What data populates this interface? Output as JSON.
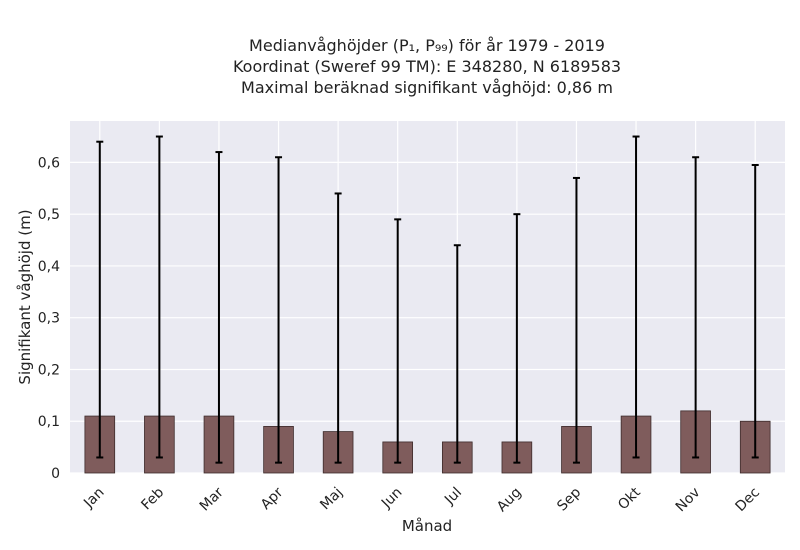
{
  "chart_data": {
    "type": "bar",
    "title_lines": [
      "Medianvåghöjder (P₁, P₉₉) för år 1979 - 2019",
      "Koordinat (Sweref 99 TM): E 348280, N 6189583",
      "Maximal beräknad signifikant våghöjd: 0,86 m"
    ],
    "xlabel": "Månad",
    "ylabel": "Signifikant våghöjd (m)",
    "categories": [
      "Jan",
      "Feb",
      "Mar",
      "Apr",
      "Maj",
      "Jun",
      "Jul",
      "Aug",
      "Sep",
      "Okt",
      "Nov",
      "Dec"
    ],
    "values": [
      0.11,
      0.11,
      0.11,
      0.09,
      0.08,
      0.06,
      0.06,
      0.06,
      0.09,
      0.11,
      0.12,
      0.1
    ],
    "p1": [
      0.03,
      0.03,
      0.02,
      0.02,
      0.02,
      0.02,
      0.02,
      0.02,
      0.02,
      0.03,
      0.03,
      0.03
    ],
    "p99": [
      0.64,
      0.65,
      0.62,
      0.61,
      0.54,
      0.49,
      0.44,
      0.5,
      0.57,
      0.65,
      0.61,
      0.595
    ],
    "yticks": [
      0,
      0.1,
      0.2,
      0.3,
      0.4,
      0.5,
      0.6
    ],
    "ytick_labels": [
      "0",
      "0,1",
      "0,2",
      "0,3",
      "0,4",
      "0,5",
      "0,6"
    ],
    "ylim": [
      0,
      0.68
    ],
    "grid": true,
    "colors": {
      "bar": "#7f5c5c",
      "bar_edge": "#3d2b2b",
      "errorbar": "#000000",
      "plot_background": "#eaeaf2",
      "grid": "#ffffff"
    }
  }
}
